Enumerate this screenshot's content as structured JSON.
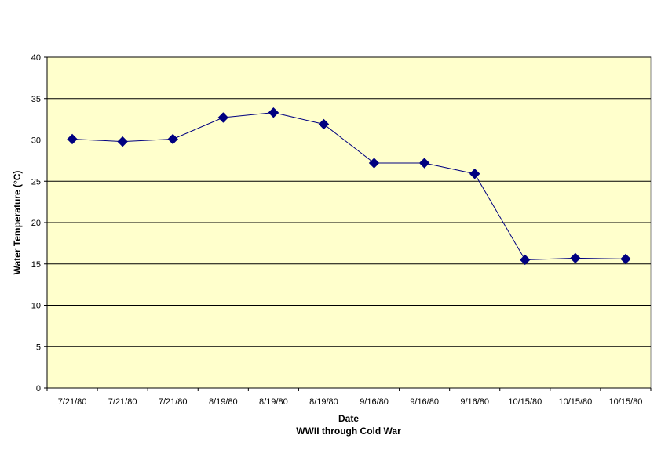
{
  "chart_data": {
    "type": "line",
    "categories": [
      "7/21/80",
      "7/21/80",
      "7/21/80",
      "8/19/80",
      "8/19/80",
      "8/19/80",
      "9/16/80",
      "9/16/80",
      "9/16/80",
      "10/15/80",
      "10/15/80",
      "10/15/80"
    ],
    "series": [
      {
        "values": [
          30.1,
          29.8,
          30.1,
          32.7,
          33.3,
          31.9,
          27.2,
          27.2,
          25.9,
          15.5,
          15.7,
          15.6
        ],
        "color": "#000080",
        "marker": "diamond"
      }
    ],
    "title": "",
    "xlabel": "Date",
    "subtitle": "WWII through Cold War",
    "ylabel": "Water Temperature (°C)",
    "ylim": [
      0,
      40
    ],
    "yticks": [
      0,
      5,
      10,
      15,
      20,
      25,
      30,
      35,
      40
    ],
    "grid": true,
    "legend": "none",
    "colors": {
      "plot_background": "#FFFFCC",
      "line": "#000080",
      "marker": "#000080",
      "gridline": "#000000"
    }
  }
}
